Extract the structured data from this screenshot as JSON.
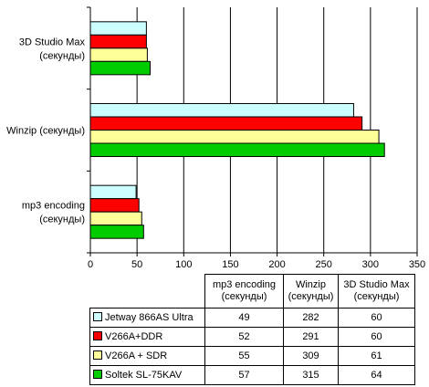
{
  "chart_data": {
    "type": "bar",
    "orientation": "horizontal",
    "categories": [
      "3D Studio Max\n(секунды)",
      "Winzip (секунды)",
      "mp3 encoding\n(секунды)"
    ],
    "xlim": [
      0,
      350
    ],
    "xticks": [
      "0",
      "50",
      "100",
      "150",
      "200",
      "250",
      "300",
      "350"
    ],
    "grid": true,
    "series": [
      {
        "name": "Jetway 866AS Ultra",
        "color": "#ccffff",
        "values": [
          60,
          282,
          49
        ]
      },
      {
        "name": "V266A+DDR",
        "color": "#ff0000",
        "values": [
          60,
          291,
          52
        ]
      },
      {
        "name": "V266A + SDR",
        "color": "#ffff99",
        "values": [
          61,
          309,
          55
        ]
      },
      {
        "name": "Soltek SL-75KAV",
        "color": "#00cc00",
        "values": [
          64,
          315,
          57
        ]
      }
    ]
  },
  "table": {
    "headers": [
      [
        "mp3 encoding",
        "(секунды)"
      ],
      [
        "Winzip",
        "(секунды)"
      ],
      [
        "3D Studio Max",
        "(секунды)"
      ]
    ],
    "rows": [
      {
        "series": "Jetway 866AS Ultra",
        "color": "#ccffff",
        "values": [
          "49",
          "282",
          "60"
        ]
      },
      {
        "series": "V266A+DDR",
        "color": "#ff0000",
        "values": [
          "52",
          "291",
          "60"
        ]
      },
      {
        "series": "V266A + SDR",
        "color": "#ffff99",
        "values": [
          "55",
          "309",
          "61"
        ]
      },
      {
        "series": "Soltek SL-75KAV",
        "color": "#00cc00",
        "values": [
          "57",
          "315",
          "64"
        ]
      }
    ]
  }
}
